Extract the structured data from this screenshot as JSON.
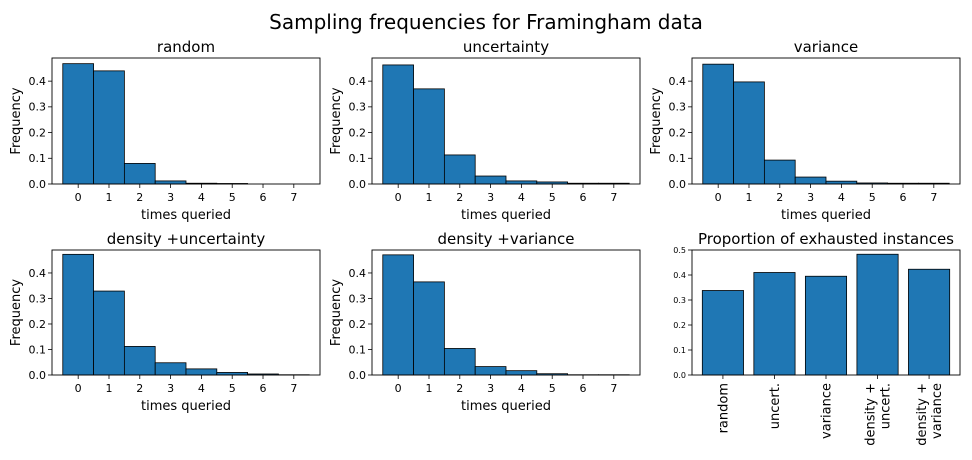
{
  "figure": {
    "title": "Sampling frequencies for Framingham data",
    "bar_color": "#1f77b4",
    "edge_color": "#000000"
  },
  "chart_data": [
    {
      "type": "bar",
      "title": "random",
      "xlabel": "times queried",
      "ylabel": "Frequency",
      "categories": [
        "0",
        "1",
        "2",
        "3",
        "4",
        "5",
        "6",
        "7"
      ],
      "values": [
        0.468,
        0.44,
        0.08,
        0.012,
        0.003,
        0.002,
        0.0,
        0.0
      ],
      "ylim": [
        0,
        0.49
      ],
      "yticks": [
        "0.0",
        "0.1",
        "0.2",
        "0.3",
        "0.4"
      ]
    },
    {
      "type": "bar",
      "title": "uncertainty",
      "xlabel": "times queried",
      "ylabel": "Frequency",
      "categories": [
        "0",
        "1",
        "2",
        "3",
        "4",
        "5",
        "6",
        "7"
      ],
      "values": [
        0.463,
        0.37,
        0.113,
        0.031,
        0.012,
        0.008,
        0.003,
        0.003
      ],
      "ylim": [
        0,
        0.49
      ],
      "yticks": [
        "0.0",
        "0.1",
        "0.2",
        "0.3",
        "0.4"
      ]
    },
    {
      "type": "bar",
      "title": "variance",
      "xlabel": "times queried",
      "ylabel": "Frequency",
      "categories": [
        "0",
        "1",
        "2",
        "3",
        "4",
        "5",
        "6",
        "7"
      ],
      "values": [
        0.466,
        0.397,
        0.093,
        0.027,
        0.011,
        0.004,
        0.003,
        0.003
      ],
      "ylim": [
        0,
        0.49
      ],
      "yticks": [
        "0.0",
        "0.1",
        "0.2",
        "0.3",
        "0.4"
      ]
    },
    {
      "type": "bar",
      "title": "density +uncertainty",
      "xlabel": "times queried",
      "ylabel": "Frequency",
      "categories": [
        "0",
        "1",
        "2",
        "3",
        "4",
        "5",
        "6",
        "7"
      ],
      "values": [
        0.473,
        0.329,
        0.112,
        0.048,
        0.024,
        0.01,
        0.004,
        0.001
      ],
      "ylim": [
        0,
        0.49
      ],
      "yticks": [
        "0.0",
        "0.1",
        "0.2",
        "0.3",
        "0.4"
      ]
    },
    {
      "type": "bar",
      "title": "density +variance",
      "xlabel": "times queried",
      "ylabel": "Frequency",
      "categories": [
        "0",
        "1",
        "2",
        "3",
        "4",
        "5",
        "6",
        "7"
      ],
      "values": [
        0.471,
        0.365,
        0.104,
        0.033,
        0.017,
        0.005,
        0.001,
        0.001
      ],
      "ylim": [
        0,
        0.49
      ],
      "yticks": [
        "0.0",
        "0.1",
        "0.2",
        "0.3",
        "0.4"
      ]
    },
    {
      "type": "bar",
      "title": "Proportion of exhausted instances",
      "xlabel": "",
      "ylabel": "",
      "categories": [
        "random",
        "uncert.",
        "variance",
        "density +\nuncert.",
        "density +\nvariance"
      ],
      "values": [
        0.338,
        0.41,
        0.395,
        0.483,
        0.423
      ],
      "ylim": [
        0,
        0.5
      ],
      "yticks": [
        "0.0",
        "0.1",
        "0.2",
        "0.3",
        "0.4",
        "0.5"
      ]
    }
  ]
}
